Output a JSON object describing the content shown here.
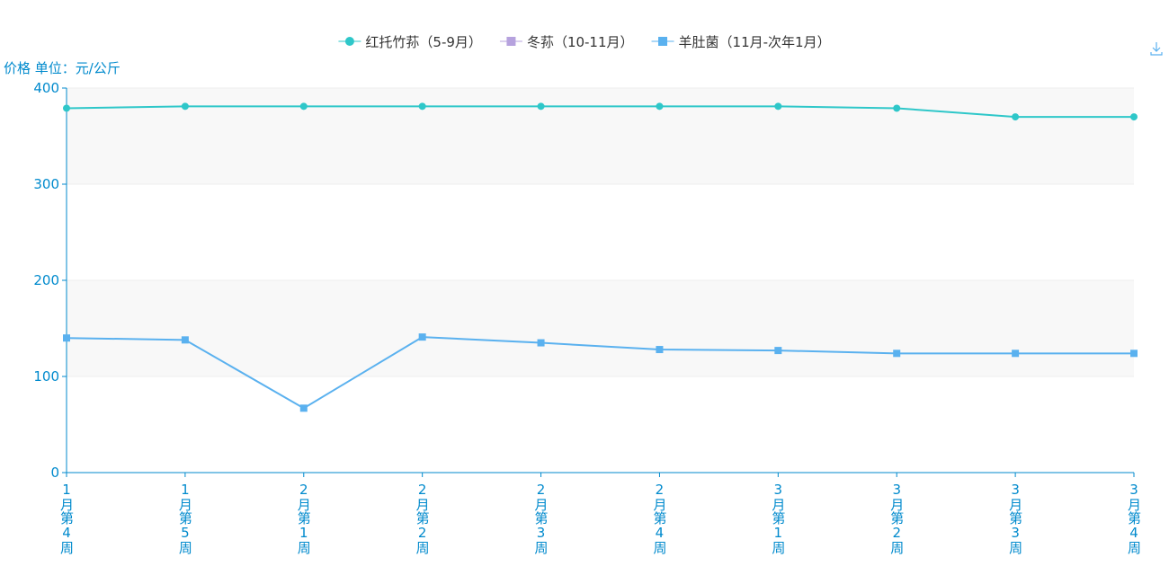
{
  "chart_data": {
    "type": "line",
    "y_axis_label": "价格 单位：元/公斤",
    "categories": [
      "1月第4周",
      "1月第5周",
      "2月第1周",
      "2月第2周",
      "2月第3周",
      "2月第4周",
      "3月第1周",
      "3月第2周",
      "3月第3周",
      "3月第4周"
    ],
    "series": [
      {
        "name": "红托竹荪（5-9月）",
        "color": "#2ec7c9",
        "marker": "circle",
        "values": [
          379,
          381,
          381,
          381,
          381,
          381,
          381,
          379,
          370,
          370
        ]
      },
      {
        "name": "冬荪（10-11月）",
        "color": "#b6a2de",
        "marker": "square",
        "values": [
          null,
          null,
          null,
          null,
          null,
          null,
          null,
          null,
          null,
          null
        ]
      },
      {
        "name": "羊肚菌（11月-次年1月）",
        "color": "#5ab1ef",
        "marker": "square",
        "values": [
          140,
          138,
          67,
          141,
          135,
          128,
          127,
          124,
          124,
          124
        ]
      }
    ],
    "ylim": [
      0,
      400
    ],
    "yticks": [
      0,
      100,
      200,
      300,
      400
    ],
    "grid": true,
    "legend": "top"
  }
}
